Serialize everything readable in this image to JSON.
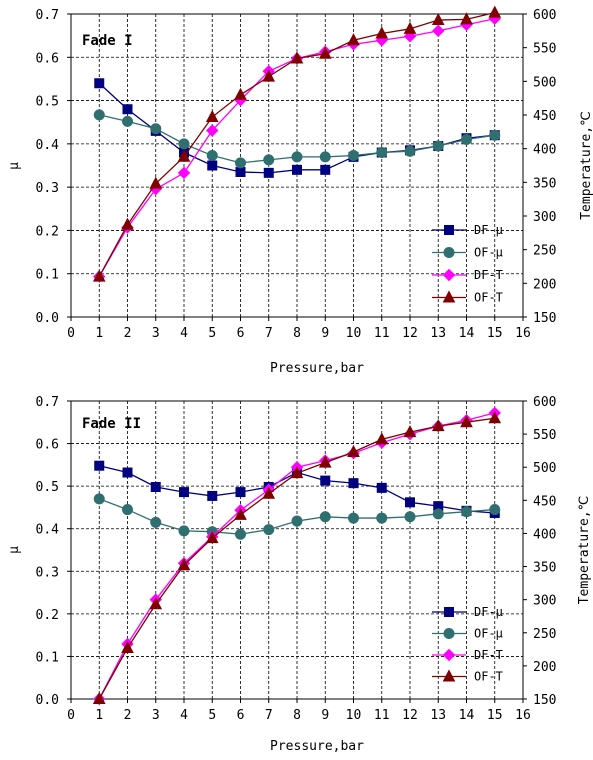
{
  "chart_data": [
    {
      "type": "line",
      "title": "Fade I",
      "xlabel": "Pressure,bar",
      "ylabel_left": "μ",
      "ylabel_right": "Temperature,℃",
      "xlim": [
        0,
        16
      ],
      "ylim_left": [
        0.0,
        0.7
      ],
      "ylim_right": [
        150,
        600
      ],
      "x_ticks": [
        "0",
        "1",
        "2",
        "3",
        "4",
        "5",
        "6",
        "7",
        "8",
        "9",
        "10",
        "11",
        "12",
        "13",
        "14",
        "15",
        "16"
      ],
      "y_left_ticks": [
        "0.0",
        "0.1",
        "0.2",
        "0.3",
        "0.4",
        "0.5",
        "0.6",
        "0.7"
      ],
      "y_right_ticks": [
        "150",
        "200",
        "250",
        "300",
        "350",
        "400",
        "450",
        "500",
        "550",
        "600"
      ],
      "x": [
        1,
        2,
        3,
        4,
        5,
        6,
        7,
        8,
        9,
        10,
        11,
        12,
        13,
        14,
        15
      ],
      "legend_position": "lower-right",
      "series": [
        {
          "name": "DF-μ",
          "axis": "left",
          "color": "#000080",
          "marker": "square",
          "values": [
            0.54,
            0.48,
            0.43,
            0.38,
            0.35,
            0.335,
            0.333,
            0.34,
            0.34,
            0.37,
            0.38,
            0.385,
            0.395,
            0.413,
            0.42
          ]
        },
        {
          "name": "OF-μ",
          "axis": "left",
          "color": "#2f6f6f",
          "marker": "circle",
          "values": [
            0.467,
            0.452,
            0.435,
            0.4,
            0.373,
            0.356,
            0.363,
            0.37,
            0.37,
            0.373,
            0.38,
            0.383,
            0.395,
            0.41,
            0.42
          ]
        },
        {
          "name": "DF-T",
          "axis": "right",
          "color": "#ff00ff",
          "marker": "diamond",
          "values": [
            210,
            283,
            340,
            364,
            427,
            472,
            515,
            534,
            544,
            555,
            561,
            567,
            575,
            584,
            593
          ]
        },
        {
          "name": "OF-T",
          "axis": "right",
          "color": "#800000",
          "marker": "triangle",
          "values": [
            210,
            287,
            348,
            388,
            447,
            480,
            507,
            534,
            541,
            561,
            571,
            578,
            591,
            592,
            602
          ]
        }
      ]
    },
    {
      "type": "line",
      "title": "Fade II",
      "xlabel": "Pressure,bar",
      "ylabel_left": "μ",
      "ylabel_right": "Temperature,℃",
      "xlim": [
        0,
        16
      ],
      "ylim_left": [
        0.0,
        0.7
      ],
      "ylim_right": [
        150,
        600
      ],
      "x_ticks": [
        "0",
        "1",
        "2",
        "3",
        "4",
        "5",
        "6",
        "7",
        "8",
        "9",
        "10",
        "11",
        "12",
        "13",
        "14",
        "15",
        "16"
      ],
      "y_left_ticks": [
        "0.0",
        "0.1",
        "0.2",
        "0.3",
        "0.4",
        "0.5",
        "0.6",
        "0.7"
      ],
      "y_right_ticks": [
        "150",
        "200",
        "250",
        "300",
        "350",
        "400",
        "450",
        "500",
        "550",
        "600"
      ],
      "x": [
        1,
        2,
        3,
        4,
        5,
        6,
        7,
        8,
        9,
        10,
        11,
        12,
        13,
        14,
        15
      ],
      "legend_position": "lower-right",
      "series": [
        {
          "name": "DF-μ",
          "axis": "left",
          "color": "#000080",
          "marker": "square",
          "values": [
            0.548,
            0.532,
            0.498,
            0.486,
            0.477,
            0.486,
            0.498,
            0.532,
            0.513,
            0.507,
            0.496,
            0.462,
            0.453,
            0.442,
            0.437
          ]
        },
        {
          "name": "OF-μ",
          "axis": "left",
          "color": "#2f6f6f",
          "marker": "circle",
          "values": [
            0.47,
            0.445,
            0.415,
            0.395,
            0.393,
            0.387,
            0.398,
            0.418,
            0.428,
            0.425,
            0.425,
            0.428,
            0.435,
            0.44,
            0.445
          ]
        },
        {
          "name": "DF-T",
          "axis": "right",
          "color": "#ff00ff",
          "marker": "diamond",
          "values": [
            150,
            233,
            300,
            355,
            395,
            435,
            466,
            500,
            510,
            521,
            537,
            550,
            562,
            571,
            582
          ]
        },
        {
          "name": "OF-T",
          "axis": "right",
          "color": "#800000",
          "marker": "triangle",
          "values": [
            150,
            227,
            293,
            352,
            393,
            428,
            460,
            491,
            507,
            523,
            542,
            553,
            562,
            568,
            574
          ]
        }
      ]
    }
  ]
}
